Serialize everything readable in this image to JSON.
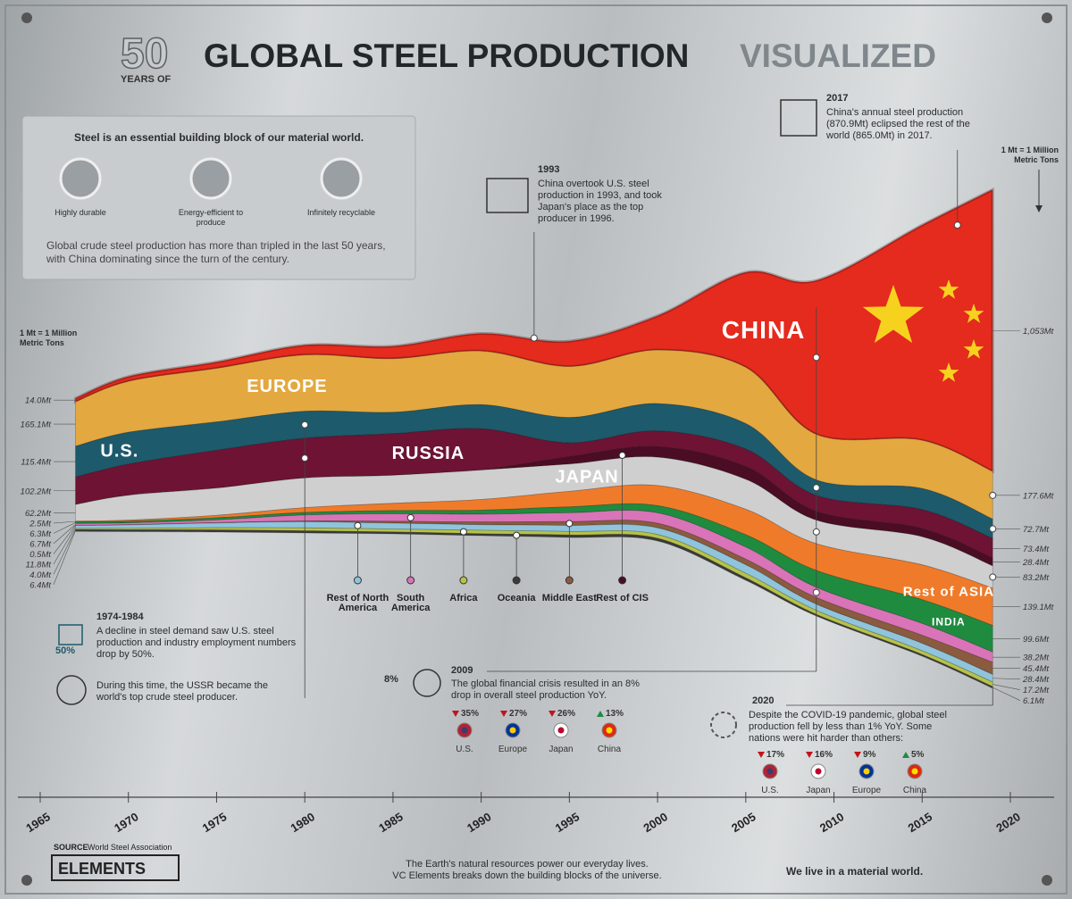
{
  "header": {
    "number": "50",
    "years_of": "YEARS OF",
    "title": "GLOBAL STEEL PRODUCTION",
    "title_accent": "VISUALIZED"
  },
  "info_box": {
    "heading": "Steel is an essential building block of our material world.",
    "features": [
      "Highly durable",
      "Energy-efficient to produce",
      "Infinitely recyclable"
    ],
    "text": "Global crude steel production has more than tripled in the last 50 years, with China dominating since the turn of the century."
  },
  "chart_data": {
    "type": "stream",
    "unit_note": "1 Mt = 1 Million Metric Tons",
    "x": [
      1967,
      1970,
      1975,
      1980,
      1985,
      1990,
      1995,
      2000,
      2005,
      2009,
      2015,
      2019
    ],
    "xlim": [
      1965,
      2020
    ],
    "xticks": [
      1965,
      1970,
      1975,
      1980,
      1985,
      1990,
      1995,
      2000,
      2005,
      2010,
      2015,
      2020
    ],
    "series": [
      {
        "name": "CHINA",
        "color": "#e52a1e",
        "values": [
          14,
          18,
          24,
          37,
          47,
          66,
          95,
          128,
          355,
          575,
          804,
          1053
        ],
        "value_labels": [
          "14.0Mt",
          null,
          null,
          null,
          null,
          null,
          null,
          null,
          null,
          null,
          null,
          "1,053Mt"
        ]
      },
      {
        "name": "EUROPE",
        "color": "#e3a840",
        "values": [
          165.1,
          190,
          200,
          210,
          200,
          200,
          190,
          200,
          210,
          170,
          180,
          177.6
        ],
        "value_labels": [
          "165.1Mt",
          null,
          null,
          null,
          null,
          null,
          null,
          null,
          null,
          null,
          null,
          "177.6Mt"
        ]
      },
      {
        "name": "U.S.",
        "color": "#1d5a6b",
        "values": [
          115.4,
          119,
          106,
          101,
          80,
          90,
          95,
          102,
          95,
          58,
          79,
          72.7
        ],
        "value_labels": [
          "115.4Mt",
          null,
          null,
          null,
          null,
          null,
          null,
          null,
          null,
          null,
          null,
          "72.7Mt"
        ]
      },
      {
        "name": "RUSSIA",
        "color": "#6e1333",
        "values": [
          102.2,
          116,
          141,
          148,
          155,
          154,
          52,
          59,
          66,
          60,
          71,
          73.4
        ],
        "value_labels": [
          "102.2Mt",
          null,
          null,
          null,
          null,
          null,
          null,
          null,
          null,
          null,
          null,
          "73.4Mt"
        ]
      },
      {
        "name": "Rest of CIS",
        "color": "#4a0d24",
        "values": [
          0,
          0,
          0,
          0,
          0,
          0,
          27,
          39,
          47,
          32,
          30,
          28.4
        ],
        "value_labels": [
          null,
          null,
          null,
          null,
          null,
          null,
          null,
          null,
          null,
          null,
          null,
          "28.4Mt"
        ]
      },
      {
        "name": "JAPAN",
        "color": "#cfcfcf",
        "values": [
          62.2,
          93,
          102,
          111,
          105,
          110,
          102,
          106,
          112,
          88,
          105,
          83.2
        ],
        "value_labels": [
          "62.2Mt",
          null,
          null,
          null,
          null,
          null,
          null,
          null,
          null,
          null,
          null,
          "83.2Mt"
        ]
      },
      {
        "name": "Rest of ASIA",
        "color": "#ef7b2a",
        "values": [
          2.5,
          4,
          9,
          18,
          27,
          40,
          58,
          75,
          95,
          100,
          130,
          139.1
        ],
        "value_labels": [
          "2.5Mt",
          null,
          null,
          null,
          null,
          null,
          null,
          null,
          null,
          null,
          null,
          "139.1Mt"
        ]
      },
      {
        "name": "INDIA",
        "color": "#1f8b3f",
        "values": [
          6.3,
          6.3,
          7.9,
          9.5,
          11.9,
          15,
          22,
          27,
          46,
          63,
          89,
          99.6
        ],
        "value_labels": [
          "6.3Mt",
          null,
          null,
          null,
          null,
          null,
          null,
          null,
          null,
          null,
          null,
          "99.6Mt"
        ]
      },
      {
        "name": "South America",
        "color": "#d974b8",
        "values": [
          6.7,
          7,
          10,
          22,
          28,
          29,
          33,
          39,
          45,
          38,
          44,
          38.2
        ],
        "value_labels": [
          "6.7Mt",
          null,
          null,
          null,
          null,
          null,
          null,
          null,
          null,
          null,
          null,
          "38.2Mt"
        ]
      },
      {
        "name": "Middle East",
        "color": "#8a5b3e",
        "values": [
          0.5,
          0.7,
          1.5,
          3,
          7,
          10,
          14,
          17,
          21,
          25,
          30,
          45.4
        ],
        "value_labels": [
          "0.5Mt",
          null,
          null,
          null,
          null,
          null,
          null,
          null,
          null,
          null,
          null,
          "45.4Mt"
        ]
      },
      {
        "name": "Rest of North America",
        "color": "#8fc4dc",
        "values": [
          11.8,
          13,
          18,
          23,
          22,
          21,
          23,
          25,
          32,
          23,
          28,
          28.4
        ],
        "value_labels": [
          "11.8Mt",
          null,
          null,
          null,
          null,
          null,
          null,
          null,
          null,
          null,
          null,
          "28.4Mt"
        ]
      },
      {
        "name": "Africa",
        "color": "#b7c24a",
        "values": [
          4.0,
          5,
          8,
          11,
          11,
          13,
          13,
          14,
          17,
          15,
          14,
          17.2
        ],
        "value_labels": [
          "4.0Mt",
          null,
          null,
          null,
          null,
          null,
          null,
          null,
          null,
          null,
          null,
          "17.2Mt"
        ]
      },
      {
        "name": "Oceania",
        "color": "#3b3b3b",
        "values": [
          6.4,
          7,
          8,
          8,
          7,
          7,
          9,
          10,
          9,
          6,
          6,
          6.1
        ],
        "value_labels": [
          "6.4Mt",
          null,
          null,
          null,
          null,
          null,
          null,
          null,
          null,
          null,
          null,
          "6.1Mt"
        ]
      }
    ]
  },
  "annotations": {
    "a2017": {
      "year": "2017",
      "text": "China's annual steel production (870.9Mt) eclipsed the rest of the world (865.0Mt) in 2017."
    },
    "a1993": {
      "year": "1993",
      "text": "China overtook U.S. steel production in 1993, and took Japan's place as the top producer in 1996."
    },
    "a1974": {
      "year": "1974-1984",
      "badge": "50%",
      "text": "A decline in steel demand saw U.S. steel production and industry employment numbers drop by 50%."
    },
    "ussr": {
      "text": "During this time, the USSR became the world's top crude steel producer."
    },
    "a2009": {
      "year": "2009",
      "badge": "8%",
      "text": "The global financial crisis resulted in an 8% drop in overall steel production YoY.",
      "changes": [
        {
          "country": "U.S.",
          "change": "35%",
          "direction": "down",
          "flag_colors": [
            "#b22234",
            "#3c3b6e"
          ]
        },
        {
          "country": "Europe",
          "change": "27%",
          "direction": "down",
          "flag_colors": [
            "#003399",
            "#ffcc00"
          ]
        },
        {
          "country": "Japan",
          "change": "26%",
          "direction": "down",
          "flag_colors": [
            "#ffffff",
            "#bc002d"
          ]
        },
        {
          "country": "China",
          "change": "13%",
          "direction": "up",
          "flag_colors": [
            "#de2910",
            "#ffde00"
          ]
        }
      ]
    },
    "a2020": {
      "year": "2020",
      "text": "Despite the COVID-19 pandemic, global steel production fell by less than 1% YoY. Some nations were hit harder than others:",
      "changes": [
        {
          "country": "U.S.",
          "change": "17%",
          "direction": "down",
          "flag_colors": [
            "#b22234",
            "#3c3b6e"
          ]
        },
        {
          "country": "Japan",
          "change": "16%",
          "direction": "down",
          "flag_colors": [
            "#ffffff",
            "#bc002d"
          ]
        },
        {
          "country": "Europe",
          "change": "9%",
          "direction": "down",
          "flag_colors": [
            "#003399",
            "#ffcc00"
          ]
        },
        {
          "country": "China",
          "change": "5%",
          "direction": "up",
          "flag_colors": [
            "#de2910",
            "#ffde00"
          ]
        }
      ]
    }
  },
  "footer": {
    "source_label": "SOURCE",
    "source": "World Steel Association",
    "brand": "ELEMENTS",
    "tagline": [
      "The Earth's natural resources power our everyday lives.",
      "VC Elements breaks down the building blocks of the universe."
    ],
    "slogan": "We live in a material world."
  }
}
